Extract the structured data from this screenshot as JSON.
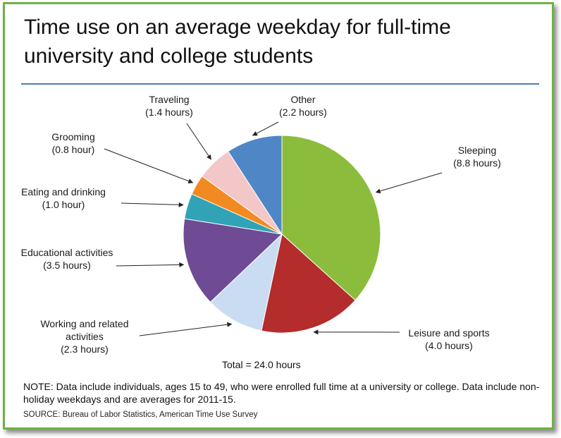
{
  "chart_data": {
    "type": "pie",
    "title": "Time use on an average weekday for full-time university and college students",
    "total_label": "Total = 24.0 hours",
    "slices": [
      {
        "label": "Sleeping",
        "value_label": "(8.8 hours)",
        "value": 8.8,
        "color": "#8cbc3c"
      },
      {
        "label": "Leisure and sports",
        "value_label": "(4.0 hours)",
        "value": 4.0,
        "color": "#b42c2c"
      },
      {
        "label": "Working and related activities",
        "label_lines": [
          "Working and related",
          "activities"
        ],
        "value_label": "(2.3 hours)",
        "value": 2.3,
        "color": "#c9dcf2"
      },
      {
        "label": "Educational activities",
        "value_label": "(3.5 hours)",
        "value": 3.5,
        "color": "#6e4b94"
      },
      {
        "label": "Eating and drinking",
        "value_label": "(1.0 hour)",
        "value": 1.0,
        "color": "#31a3b6"
      },
      {
        "label": "Grooming",
        "value_label": "(0.8 hour)",
        "value": 0.8,
        "color": "#f28a22"
      },
      {
        "label": "Traveling",
        "value_label": "(1.4 hours)",
        "value": 1.4,
        "color": "#f3c7c7"
      },
      {
        "label": "Other",
        "value_label": "(2.2 hours)",
        "value": 2.2,
        "color": "#4f86c6"
      }
    ]
  },
  "note": "NOTE: Data include individuals, ages 15 to 49, who were enrolled full time at a university or college. Data include non-holiday weekdays and are averages for 2011-15.",
  "source": "SOURCE: Bureau of Labor Statistics, American Time Use Survey",
  "colors": {
    "frame": "#6db33f",
    "rule": "#4a7fb5"
  }
}
